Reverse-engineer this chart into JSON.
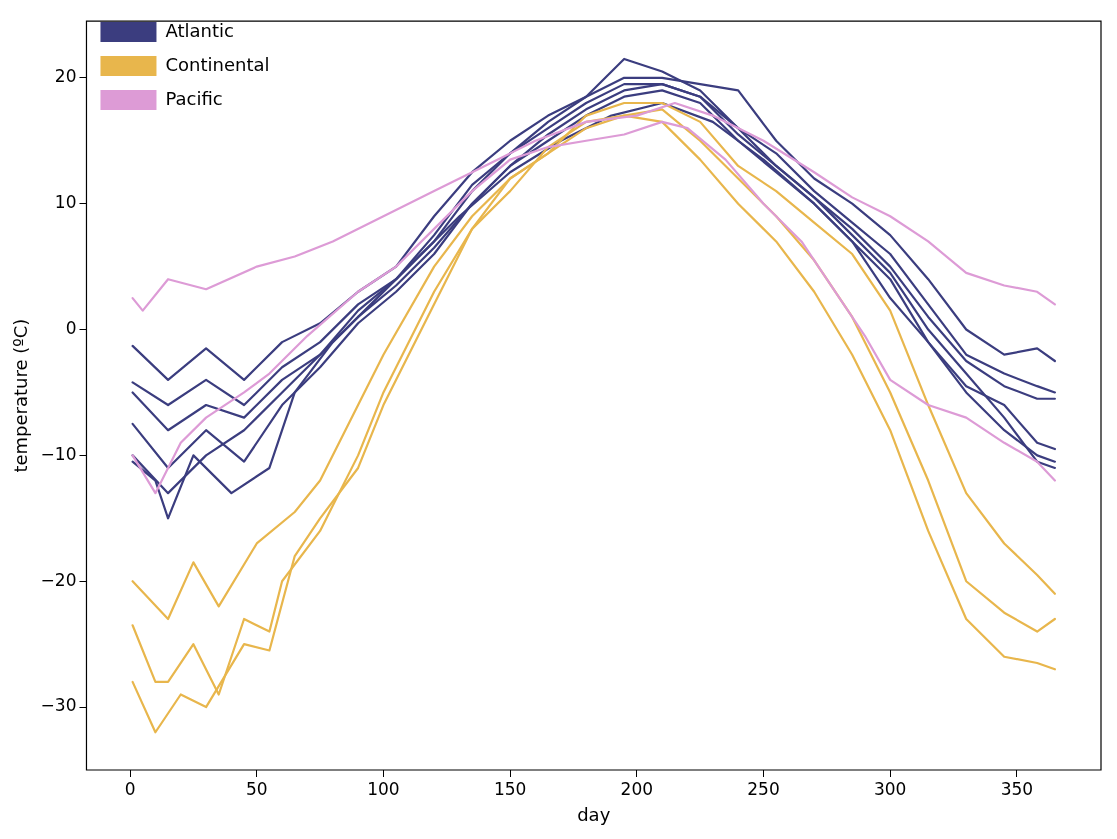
{
  "chart_data": {
    "type": "line",
    "xlabel": "day",
    "ylabel": "temperature (ºC)",
    "xlim": [
      -17.2,
      383.2
    ],
    "ylim": [
      -35,
      24.5
    ],
    "xticks": [
      0,
      50,
      100,
      150,
      200,
      250,
      300,
      350
    ],
    "yticks": [
      -30,
      -20,
      -10,
      0,
      10,
      20
    ],
    "grid": false,
    "legend": "top left",
    "marker": "none",
    "line_style": "solid",
    "series": [
      {
        "name": "Atlantic",
        "color": "#3b3d7f",
        "x": [
          1,
          15,
          30,
          45,
          60,
          75,
          90,
          105,
          120,
          135,
          150,
          165,
          180,
          195,
          210,
          225,
          240,
          255,
          270,
          285,
          300,
          315,
          330,
          345,
          358,
          365
        ],
        "values": [
          -1.3,
          -4,
          -1.5,
          -4,
          -1,
          0.5,
          3,
          5,
          9,
          12.5,
          15,
          17,
          18.5,
          20,
          20,
          19.5,
          19,
          15,
          12,
          10,
          7.5,
          4,
          0,
          -2,
          -1.5,
          -2.5
        ]
      },
      {
        "color": "#3b3d7f",
        "x": [
          1,
          15,
          30,
          45,
          60,
          75,
          90,
          105,
          120,
          135,
          150,
          165,
          180,
          195,
          210,
          225,
          240,
          255,
          270,
          285,
          300,
          315,
          330,
          345,
          358,
          365
        ],
        "values": [
          -4.2,
          -6,
          -4,
          -6,
          -3,
          -1,
          2,
          4,
          7,
          11,
          14,
          16.5,
          18.5,
          21.5,
          20.5,
          19,
          16,
          14,
          11,
          8.5,
          6,
          2,
          -2,
          -3.5,
          -4.5,
          -5
        ]
      },
      {
        "color": "#3b3d7f",
        "x": [
          1,
          15,
          30,
          45,
          60,
          75,
          90,
          105,
          120,
          135,
          150,
          165,
          180,
          195,
          210,
          225,
          240,
          255,
          270,
          285,
          300,
          315,
          330,
          345,
          358,
          365
        ],
        "values": [
          -5,
          -8,
          -6,
          -7,
          -4,
          -2,
          1,
          3.5,
          6.5,
          10,
          13,
          15.5,
          17.5,
          19,
          19.5,
          18.5,
          15.5,
          13,
          10.5,
          8,
          5,
          1,
          -2.5,
          -4.5,
          -5.5,
          -5.5
        ]
      },
      {
        "color": "#3b3d7f",
        "x": [
          1,
          15,
          30,
          45,
          60,
          75,
          90,
          105,
          120,
          135,
          150,
          165,
          180,
          195,
          210,
          225,
          240,
          255,
          270,
          285,
          300,
          315,
          330,
          345,
          358,
          365
        ],
        "values": [
          -7.5,
          -11,
          -8,
          -10.5,
          -6,
          -3,
          0.5,
          3,
          6,
          10,
          13,
          15,
          17,
          18.5,
          19,
          18,
          15,
          12.5,
          10,
          7,
          4,
          -1,
          -4.5,
          -6,
          -9,
          -9.5
        ]
      },
      {
        "color": "#3b3d7f",
        "x": [
          1,
          15,
          30,
          45,
          60,
          75,
          90,
          105,
          120,
          135,
          150,
          165,
          180,
          195,
          210,
          225,
          240,
          255,
          270,
          285,
          300,
          315,
          330,
          345,
          358,
          365
        ],
        "values": [
          -10,
          -13,
          -10,
          -8,
          -5,
          -2,
          1.5,
          4,
          7.5,
          11.5,
          14,
          16,
          18,
          19.5,
          19.5,
          18.5,
          16,
          13,
          10.5,
          7.5,
          4.5,
          0,
          -3.5,
          -7,
          -10.5,
          -11
        ]
      },
      {
        "color": "#3b3d7f",
        "x": [
          1,
          10,
          15,
          25,
          40,
          55,
          65,
          80,
          95,
          110,
          130,
          150,
          170,
          190,
          210,
          230,
          250,
          270,
          285,
          300,
          315,
          330,
          345,
          358,
          365
        ],
        "values": [
          -10.5,
          -12,
          -15,
          -10,
          -13,
          -11,
          -5,
          -1,
          2,
          5,
          9,
          12.5,
          15,
          17,
          18,
          16.5,
          13.5,
          10,
          7,
          2.5,
          -1,
          -5,
          -8,
          -10,
          -10.5
        ]
      },
      {
        "name": "Continental",
        "color": "#e8b64c",
        "x": [
          1,
          15,
          25,
          35,
          50,
          65,
          75,
          90,
          100,
          120,
          135,
          150,
          165,
          180,
          195,
          210,
          225,
          240,
          255,
          270,
          285,
          300,
          315,
          330,
          345,
          358,
          365
        ],
        "values": [
          -20,
          -23,
          -18.5,
          -22,
          -17,
          -14.5,
          -12,
          -6,
          -2,
          5,
          9,
          12,
          14,
          17,
          18,
          18,
          16.5,
          13,
          11,
          8.5,
          6,
          1.5,
          -6,
          -13,
          -17,
          -19.5,
          -21
        ]
      },
      {
        "color": "#e8b64c",
        "x": [
          1,
          10,
          15,
          25,
          35,
          45,
          55,
          60,
          75,
          90,
          100,
          120,
          135,
          150,
          165,
          180,
          195,
          210,
          225,
          240,
          255,
          270,
          285,
          300,
          315,
          330,
          345,
          358,
          365
        ],
        "values": [
          -23.5,
          -28,
          -28,
          -25,
          -29,
          -23,
          -24,
          -20,
          -16,
          -10,
          -5,
          3,
          8,
          12,
          14,
          16,
          17,
          17.5,
          15,
          12,
          9,
          5.5,
          1,
          -5,
          -12,
          -20,
          -22.5,
          -24,
          -23
        ]
      },
      {
        "color": "#e8b64c",
        "x": [
          1,
          10,
          20,
          30,
          45,
          55,
          65,
          75,
          90,
          100,
          120,
          135,
          150,
          165,
          180,
          195,
          210,
          225,
          240,
          255,
          270,
          285,
          300,
          315,
          330,
          345,
          358,
          365
        ],
        "values": [
          -28,
          -32,
          -29,
          -30,
          -25,
          -25.5,
          -18,
          -15,
          -11,
          -6,
          2,
          8,
          11,
          14.5,
          16.5,
          17,
          16.5,
          13.5,
          10,
          7,
          3,
          -2,
          -8,
          -16,
          -23,
          -26,
          -26.5,
          -27
        ]
      },
      {
        "name": "Pacific",
        "color": "#dd9bd6",
        "x": [
          1,
          5,
          15,
          30,
          50,
          65,
          80,
          100,
          120,
          140,
          160,
          180,
          200,
          215,
          230,
          250,
          270,
          285,
          300,
          315,
          330,
          345,
          358,
          365
        ],
        "values": [
          2.5,
          1.5,
          4,
          3.2,
          5,
          5.8,
          7,
          9,
          11,
          13,
          15,
          16.5,
          17,
          18,
          17,
          15,
          12.5,
          10.5,
          9,
          7,
          4.5,
          3.5,
          3,
          2
        ]
      },
      {
        "color": "#dd9bd6",
        "x": [
          1,
          10,
          20,
          30,
          45,
          55,
          70,
          90,
          105,
          120,
          135,
          150,
          165,
          180,
          195,
          210,
          220,
          235,
          250,
          265,
          280,
          290,
          300,
          315,
          330,
          345,
          358,
          365
        ],
        "values": [
          -10,
          -13,
          -9,
          -7,
          -5,
          -3.5,
          -0.5,
          3,
          5,
          8,
          11,
          13.5,
          14.5,
          15,
          15.5,
          16.5,
          16,
          13.5,
          10,
          7,
          2.5,
          -0.5,
          -4,
          -6,
          -7,
          -9,
          -10.5,
          -12
        ]
      }
    ]
  }
}
